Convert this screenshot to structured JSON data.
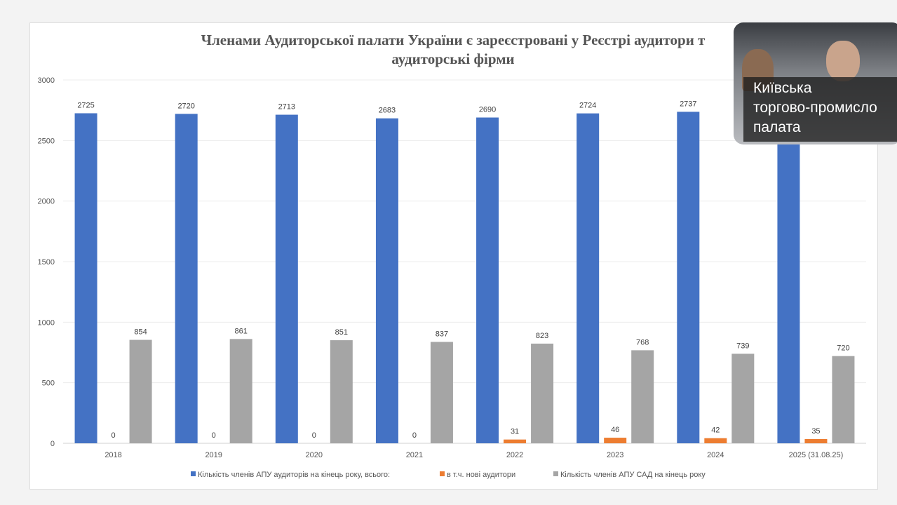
{
  "chart_data": {
    "type": "bar",
    "title": "Членами Аудиторської палати України є зареєстровані у Реєстрі аудитори та аудиторські фірми",
    "title_line1": "Членами Аудиторської палати України є зареєстровані у Реєстрі аудитори т",
    "title_line2": "аудиторські фірми",
    "categories": [
      "2018",
      "2019",
      "2020",
      "2021",
      "2022",
      "2023",
      "2024",
      "2025 (31.08.25)"
    ],
    "ylim": [
      0,
      3000
    ],
    "yticks": [
      0,
      500,
      1000,
      1500,
      2000,
      2500,
      3000
    ],
    "grid": true,
    "legend_position": "bottom",
    "series": [
      {
        "name": "Кількість членів АПУ аудиторів на кінець року, всього:",
        "color": "#4472c4",
        "values": [
          2725,
          2720,
          2713,
          2683,
          2690,
          2724,
          2737,
          2740
        ],
        "labels": [
          "2725",
          "2720",
          "2713",
          "2683",
          "2690",
          "2724",
          "2737",
          ""
        ]
      },
      {
        "name": "в т.ч. нові аудитори",
        "color": "#ed7d31",
        "values": [
          0,
          0,
          0,
          0,
          31,
          46,
          42,
          35
        ],
        "labels": [
          "0",
          "0",
          "0",
          "0",
          "31",
          "46",
          "42",
          "35"
        ]
      },
      {
        "name": "Кількість членів АПУ САД на кінець року",
        "color": "#a5a5a5",
        "values": [
          854,
          861,
          851,
          837,
          823,
          768,
          739,
          720
        ],
        "labels": [
          "854",
          "861",
          "851",
          "837",
          "823",
          "768",
          "739",
          "720"
        ]
      }
    ]
  },
  "overlay": {
    "caption": "Київська\nторгово-промисло\nпалата"
  }
}
